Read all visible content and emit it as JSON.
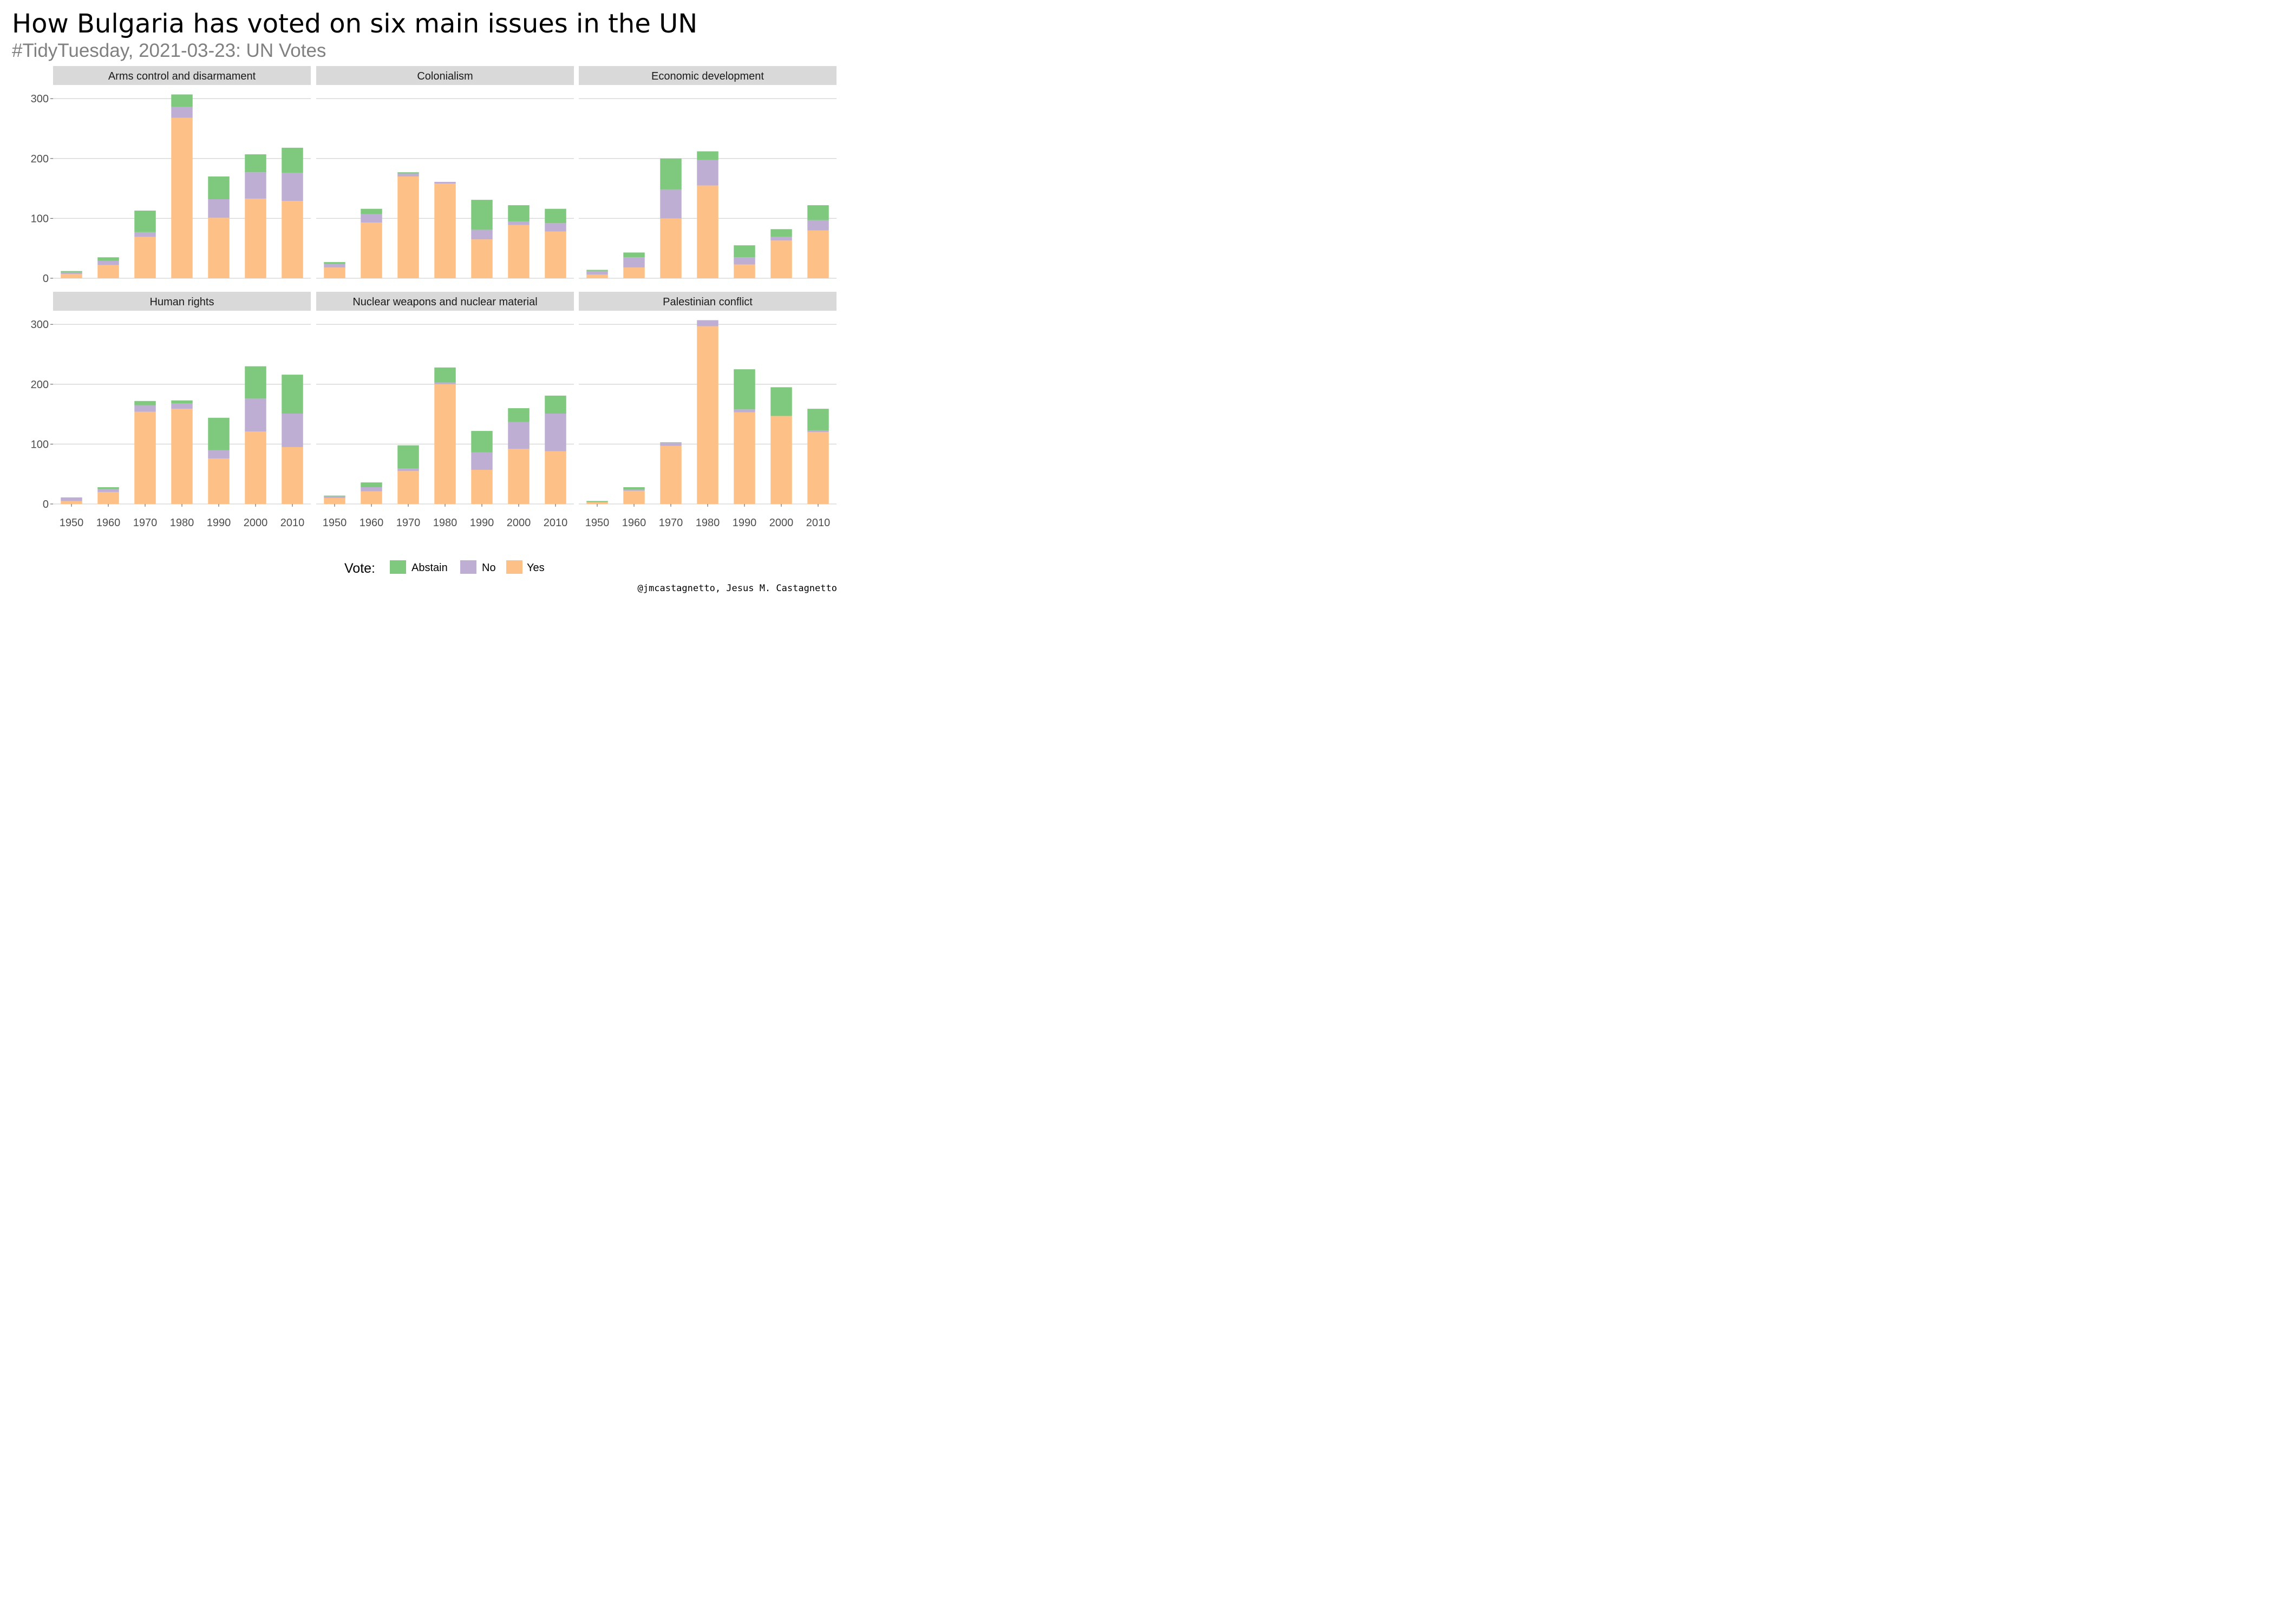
{
  "title": "How Bulgaria has voted on six main issues in the UN",
  "subtitle": "#TidyTuesday, 2021-03-23: UN Votes",
  "caption": "@jmcastagnetto, Jesus M. Castagnetto",
  "legend": {
    "title": "Vote:",
    "items": [
      {
        "label": "Abstain",
        "color": "#7fc97f"
      },
      {
        "label": "No",
        "color": "#beaed4"
      },
      {
        "label": "Yes",
        "color": "#fdc086"
      }
    ]
  },
  "chart_data": {
    "type": "bar",
    "stacked": true,
    "facets_layout": "2 rows x 3 columns",
    "legend_position": "bottom",
    "grid": "horizontal major gridlines",
    "categories": [
      "1950",
      "1960",
      "1970",
      "1980",
      "1990",
      "2000",
      "2010"
    ],
    "y_ticks": [
      0,
      100,
      200,
      300
    ],
    "ylim": [
      0,
      320
    ],
    "series_order": [
      "Yes",
      "No",
      "Abstain"
    ],
    "colors": {
      "Yes": "#fdc086",
      "No": "#beaed4",
      "Abstain": "#7fc97f"
    },
    "facets": [
      {
        "name": "Arms control and disarmament",
        "series": [
          {
            "name": "Yes",
            "values": [
              7,
              22,
              69,
              268,
              101,
              133,
              129
            ]
          },
          {
            "name": "No",
            "values": [
              3,
              7,
              8,
              18,
              31,
              44,
              47
            ]
          },
          {
            "name": "Abstain",
            "values": [
              2,
              6,
              36,
              21,
              38,
              30,
              42
            ]
          }
        ]
      },
      {
        "name": "Colonialism",
        "series": [
          {
            "name": "Yes",
            "values": [
              18,
              93,
              170,
              158,
              65,
              89,
              78
            ]
          },
          {
            "name": "No",
            "values": [
              6,
              14,
              5,
              3,
              16,
              6,
              14
            ]
          },
          {
            "name": "Abstain",
            "values": [
              3,
              9,
              2,
              0,
              50,
              27,
              24
            ]
          }
        ]
      },
      {
        "name": "Economic development",
        "series": [
          {
            "name": "Yes",
            "values": [
              6,
              18,
              100,
              155,
              23,
              63,
              80
            ]
          },
          {
            "name": "No",
            "values": [
              6,
              17,
              48,
              43,
              12,
              6,
              17
            ]
          },
          {
            "name": "Abstain",
            "values": [
              2,
              8,
              52,
              14,
              20,
              13,
              25
            ]
          }
        ]
      },
      {
        "name": "Human rights",
        "series": [
          {
            "name": "Yes",
            "values": [
              5,
              20,
              154,
              159,
              76,
              121,
              95
            ]
          },
          {
            "name": "No",
            "values": [
              6,
              5,
              11,
              9,
              14,
              55,
              56
            ]
          },
          {
            "name": "Abstain",
            "values": [
              0,
              3,
              7,
              5,
              54,
              54,
              65
            ]
          }
        ]
      },
      {
        "name": "Nuclear weapons and nuclear material",
        "series": [
          {
            "name": "Yes",
            "values": [
              10,
              21,
              55,
              200,
              57,
              92,
              88
            ]
          },
          {
            "name": "No",
            "values": [
              3,
              7,
              4,
              3,
              29,
              45,
              63
            ]
          },
          {
            "name": "Abstain",
            "values": [
              1,
              8,
              39,
              25,
              36,
              23,
              30
            ]
          }
        ]
      },
      {
        "name": "Palestinian conflict",
        "series": [
          {
            "name": "Yes",
            "values": [
              3,
              22,
              97,
              297,
              153,
              147,
              120
            ]
          },
          {
            "name": "No",
            "values": [
              0,
              2,
              5,
              10,
              5,
              0,
              3
            ]
          },
          {
            "name": "Abstain",
            "values": [
              2,
              4,
              1,
              0,
              67,
              48,
              36
            ]
          }
        ]
      }
    ]
  }
}
